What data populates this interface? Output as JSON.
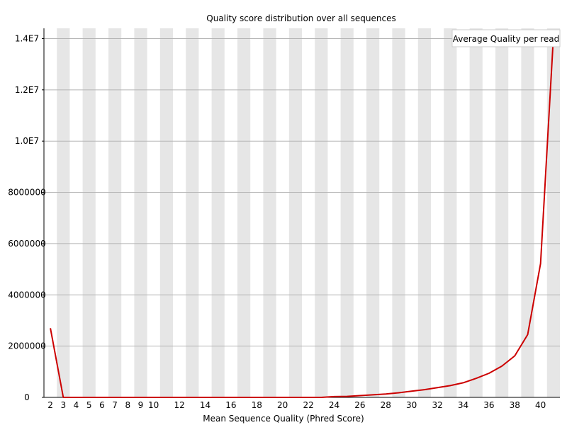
{
  "chart_data": {
    "type": "line",
    "title": "Quality score distribution over all sequences",
    "xlabel": "Mean Sequence Quality (Phred Score)",
    "ylabel": "",
    "x": [
      2,
      3,
      4,
      5,
      6,
      7,
      8,
      9,
      10,
      11,
      12,
      13,
      14,
      15,
      16,
      17,
      18,
      19,
      20,
      21,
      22,
      23,
      24,
      25,
      26,
      27,
      28,
      29,
      30,
      31,
      32,
      33,
      34,
      35,
      36,
      37,
      38,
      39,
      40,
      41
    ],
    "x_tick_labels": [
      "2",
      "3",
      "4",
      "5",
      "6",
      "7",
      "8",
      "9",
      "10",
      "12",
      "14",
      "16",
      "18",
      "20",
      "22",
      "24",
      "26",
      "28",
      "30",
      "32",
      "34",
      "36",
      "38",
      "40"
    ],
    "x_tick_values": [
      2,
      3,
      4,
      5,
      6,
      7,
      8,
      9,
      10,
      12,
      14,
      16,
      18,
      20,
      22,
      24,
      26,
      28,
      30,
      32,
      34,
      36,
      38,
      40
    ],
    "y_tick_labels": [
      "0",
      "2000000",
      "4000000",
      "6000000",
      "8000000",
      "1.0E7",
      "1.2E7",
      "1.4E7"
    ],
    "y_tick_values": [
      0,
      2000000,
      4000000,
      6000000,
      8000000,
      10000000,
      12000000,
      14000000
    ],
    "ylim": [
      0,
      14400000
    ],
    "xlim": [
      1.5,
      41.5
    ],
    "grid": true,
    "legend_position": "top-right",
    "series": [
      {
        "name": "Average Quality per read",
        "color": "#cc0000",
        "values": [
          2700000,
          0,
          0,
          0,
          0,
          0,
          0,
          0,
          0,
          0,
          0,
          0,
          0,
          0,
          0,
          0,
          0,
          0,
          0,
          0,
          0,
          0,
          30000,
          40000,
          70000,
          100000,
          130000,
          180000,
          240000,
          300000,
          380000,
          460000,
          570000,
          740000,
          940000,
          1220000,
          1620000,
          2450000,
          5220000,
          14100000
        ]
      }
    ]
  }
}
